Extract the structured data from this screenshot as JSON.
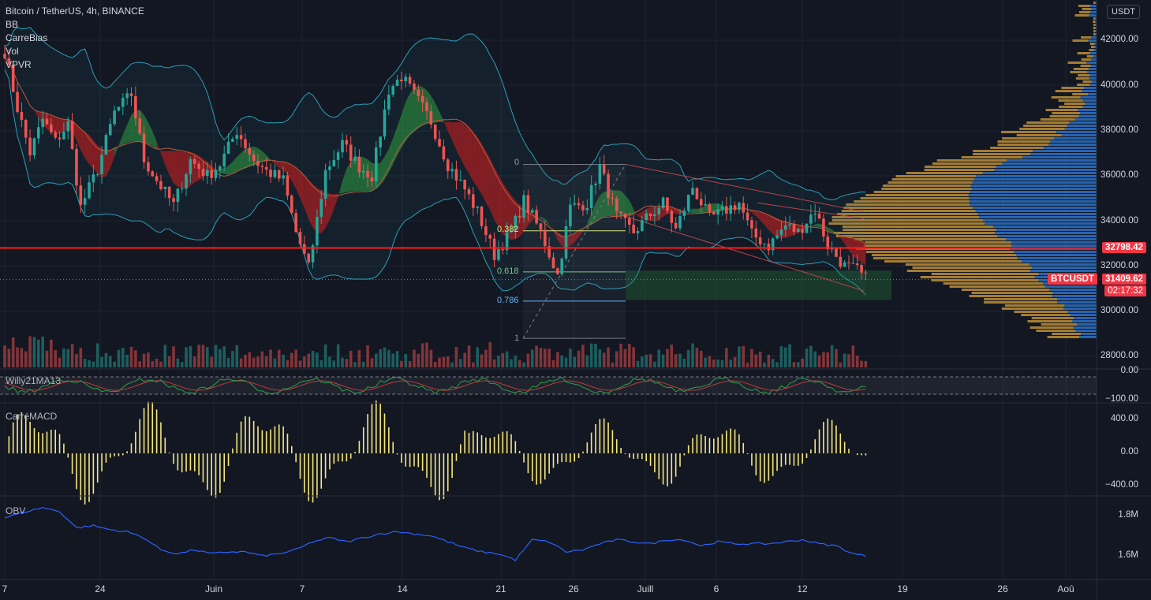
{
  "header": {
    "symbol_title": "Bitcoin / TetherUS, 4h, BINANCE",
    "indicators": [
      "BB",
      "CarreBias",
      "Vol",
      "VPVR"
    ]
  },
  "panes": {
    "willy": "Willy21MA13",
    "macd": "CarréMACD",
    "obv": "OBV"
  },
  "currency_button": "USDT",
  "price_axis": [
    "42000.00",
    "40000.00",
    "38000.00",
    "36000.00",
    "34000.00",
    "32000.00",
    "30000.00",
    "28000.00"
  ],
  "willy_axis": [
    "0.00",
    "−100.00"
  ],
  "macd_axis": [
    "400.00",
    "0.00",
    "−400.00"
  ],
  "obv_axis": [
    "1.8M",
    "1.6M"
  ],
  "time_axis": [
    "7",
    "24",
    "Juin",
    "7",
    "14",
    "21",
    "26",
    "Juill",
    "6",
    "12",
    "19",
    "26",
    "Aoû"
  ],
  "tags": {
    "resistance_price": "32798.42",
    "symbol": "BTCUSDT",
    "last_price": "31409.62",
    "countdown": "02:17:32"
  },
  "fib_levels": [
    "0",
    "0.382",
    "0.618",
    "0.786",
    "1"
  ],
  "colors": {
    "background": "#131722",
    "bull": "#26a69a",
    "bear": "#ef5350",
    "resistance": "#ff1a1a",
    "bb": "#2a9fb8",
    "vp_up": "#d4a03c",
    "vp_down": "#2e78d2",
    "macd": "#f5e67c",
    "obv": "#2962ff"
  },
  "chart_data": {
    "type": "candlestick",
    "symbol": "BTCUSDT",
    "timeframe": "4h",
    "price_range": [
      27500,
      43500
    ],
    "resistance_line": 32798.42,
    "last_price": 31409.62,
    "close_path": [
      [
        0,
        41500
      ],
      [
        3,
        39000
      ],
      [
        6,
        37000
      ],
      [
        9,
        38500
      ],
      [
        12,
        37500
      ],
      [
        15,
        38300
      ],
      [
        18,
        34600
      ],
      [
        22,
        36300
      ],
      [
        26,
        38800
      ],
      [
        30,
        39600
      ],
      [
        33,
        36700
      ],
      [
        36,
        35800
      ],
      [
        40,
        34700
      ],
      [
        44,
        36700
      ],
      [
        48,
        36000
      ],
      [
        51,
        36500
      ],
      [
        55,
        38000
      ],
      [
        59,
        36700
      ],
      [
        62,
        36200
      ],
      [
        66,
        35800
      ],
      [
        69,
        33500
      ],
      [
        72,
        31900
      ],
      [
        76,
        36200
      ],
      [
        80,
        37400
      ],
      [
        84,
        36400
      ],
      [
        87,
        36000
      ],
      [
        91,
        39800
      ],
      [
        94,
        40400
      ],
      [
        98,
        39300
      ],
      [
        101,
        38400
      ],
      [
        105,
        36500
      ],
      [
        109,
        35400
      ],
      [
        112,
        34400
      ],
      [
        116,
        32500
      ],
      [
        120,
        33500
      ],
      [
        123,
        34900
      ],
      [
        127,
        33500
      ],
      [
        131,
        31600
      ],
      [
        134,
        34600
      ],
      [
        138,
        34800
      ],
      [
        141,
        36400
      ],
      [
        145,
        34200
      ],
      [
        149,
        33500
      ],
      [
        152,
        34100
      ],
      [
        156,
        34800
      ],
      [
        159,
        33600
      ],
      [
        163,
        35500
      ],
      [
        167,
        34100
      ],
      [
        170,
        34400
      ],
      [
        174,
        34800
      ],
      [
        177,
        33400
      ],
      [
        181,
        32900
      ],
      [
        185,
        33800
      ],
      [
        188,
        33500
      ],
      [
        192,
        34500
      ],
      [
        195,
        32900
      ],
      [
        199,
        32000
      ],
      [
        202,
        31800
      ],
      [
        204,
        31400
      ]
    ],
    "fibonacci": {
      "from_price": 28800,
      "to_price": 36500,
      "levels": [
        0,
        0.382,
        0.618,
        0.786,
        1
      ]
    },
    "obv_path": [
      [
        0,
        1.79
      ],
      [
        5,
        1.82
      ],
      [
        9,
        1.84
      ],
      [
        13,
        1.82
      ],
      [
        17,
        1.74
      ],
      [
        21,
        1.75
      ],
      [
        25,
        1.73
      ],
      [
        29,
        1.72
      ],
      [
        33,
        1.69
      ],
      [
        37,
        1.63
      ],
      [
        41,
        1.61
      ],
      [
        45,
        1.63
      ],
      [
        49,
        1.61
      ],
      [
        53,
        1.62
      ],
      [
        57,
        1.62
      ],
      [
        61,
        1.6
      ],
      [
        65,
        1.61
      ],
      [
        69,
        1.63
      ],
      [
        73,
        1.67
      ],
      [
        77,
        1.69
      ],
      [
        81,
        1.67
      ],
      [
        85,
        1.69
      ],
      [
        89,
        1.71
      ],
      [
        93,
        1.72
      ],
      [
        97,
        1.71
      ],
      [
        101,
        1.7
      ],
      [
        105,
        1.67
      ],
      [
        109,
        1.64
      ],
      [
        113,
        1.62
      ],
      [
        117,
        1.61
      ],
      [
        121,
        1.58
      ],
      [
        125,
        1.68
      ],
      [
        129,
        1.67
      ],
      [
        133,
        1.62
      ],
      [
        137,
        1.63
      ],
      [
        141,
        1.66
      ],
      [
        145,
        1.68
      ],
      [
        149,
        1.67
      ],
      [
        153,
        1.66
      ],
      [
        157,
        1.68
      ],
      [
        161,
        1.68
      ],
      [
        165,
        1.65
      ],
      [
        169,
        1.67
      ],
      [
        173,
        1.66
      ],
      [
        177,
        1.66
      ],
      [
        181,
        1.66
      ],
      [
        185,
        1.67
      ],
      [
        189,
        1.68
      ],
      [
        193,
        1.66
      ],
      [
        197,
        1.65
      ],
      [
        201,
        1.61
      ],
      [
        204,
        1.6
      ]
    ]
  }
}
